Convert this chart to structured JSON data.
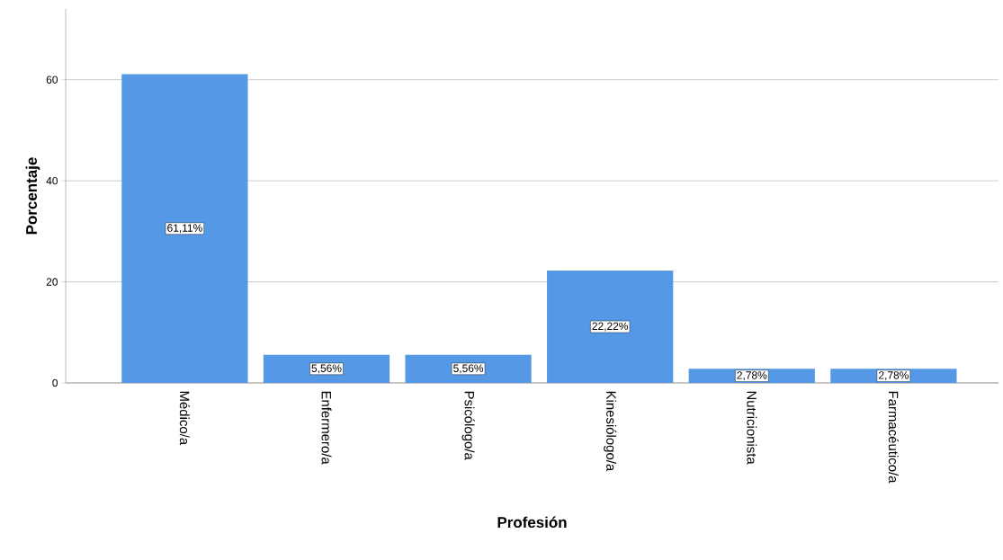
{
  "chart_data": {
    "type": "bar",
    "xlabel": "Profesión",
    "ylabel": "Porcentaje",
    "categories": [
      "Médico/a",
      "Enfermero/a",
      "Psicólogo/a",
      "Kinesiólogo/a",
      "Nutricionista",
      "Farmacéutico/a"
    ],
    "values": [
      61.11,
      5.56,
      5.56,
      22.22,
      2.78,
      2.78
    ],
    "value_labels": [
      "61,11%",
      "5,56%",
      "5,56%",
      "22,22%",
      "2,78%",
      "2,78%"
    ],
    "color": "#5599e6",
    "ylim": [
      0,
      74
    ],
    "yticks": [
      0,
      20,
      40,
      60
    ],
    "grid": "y"
  }
}
